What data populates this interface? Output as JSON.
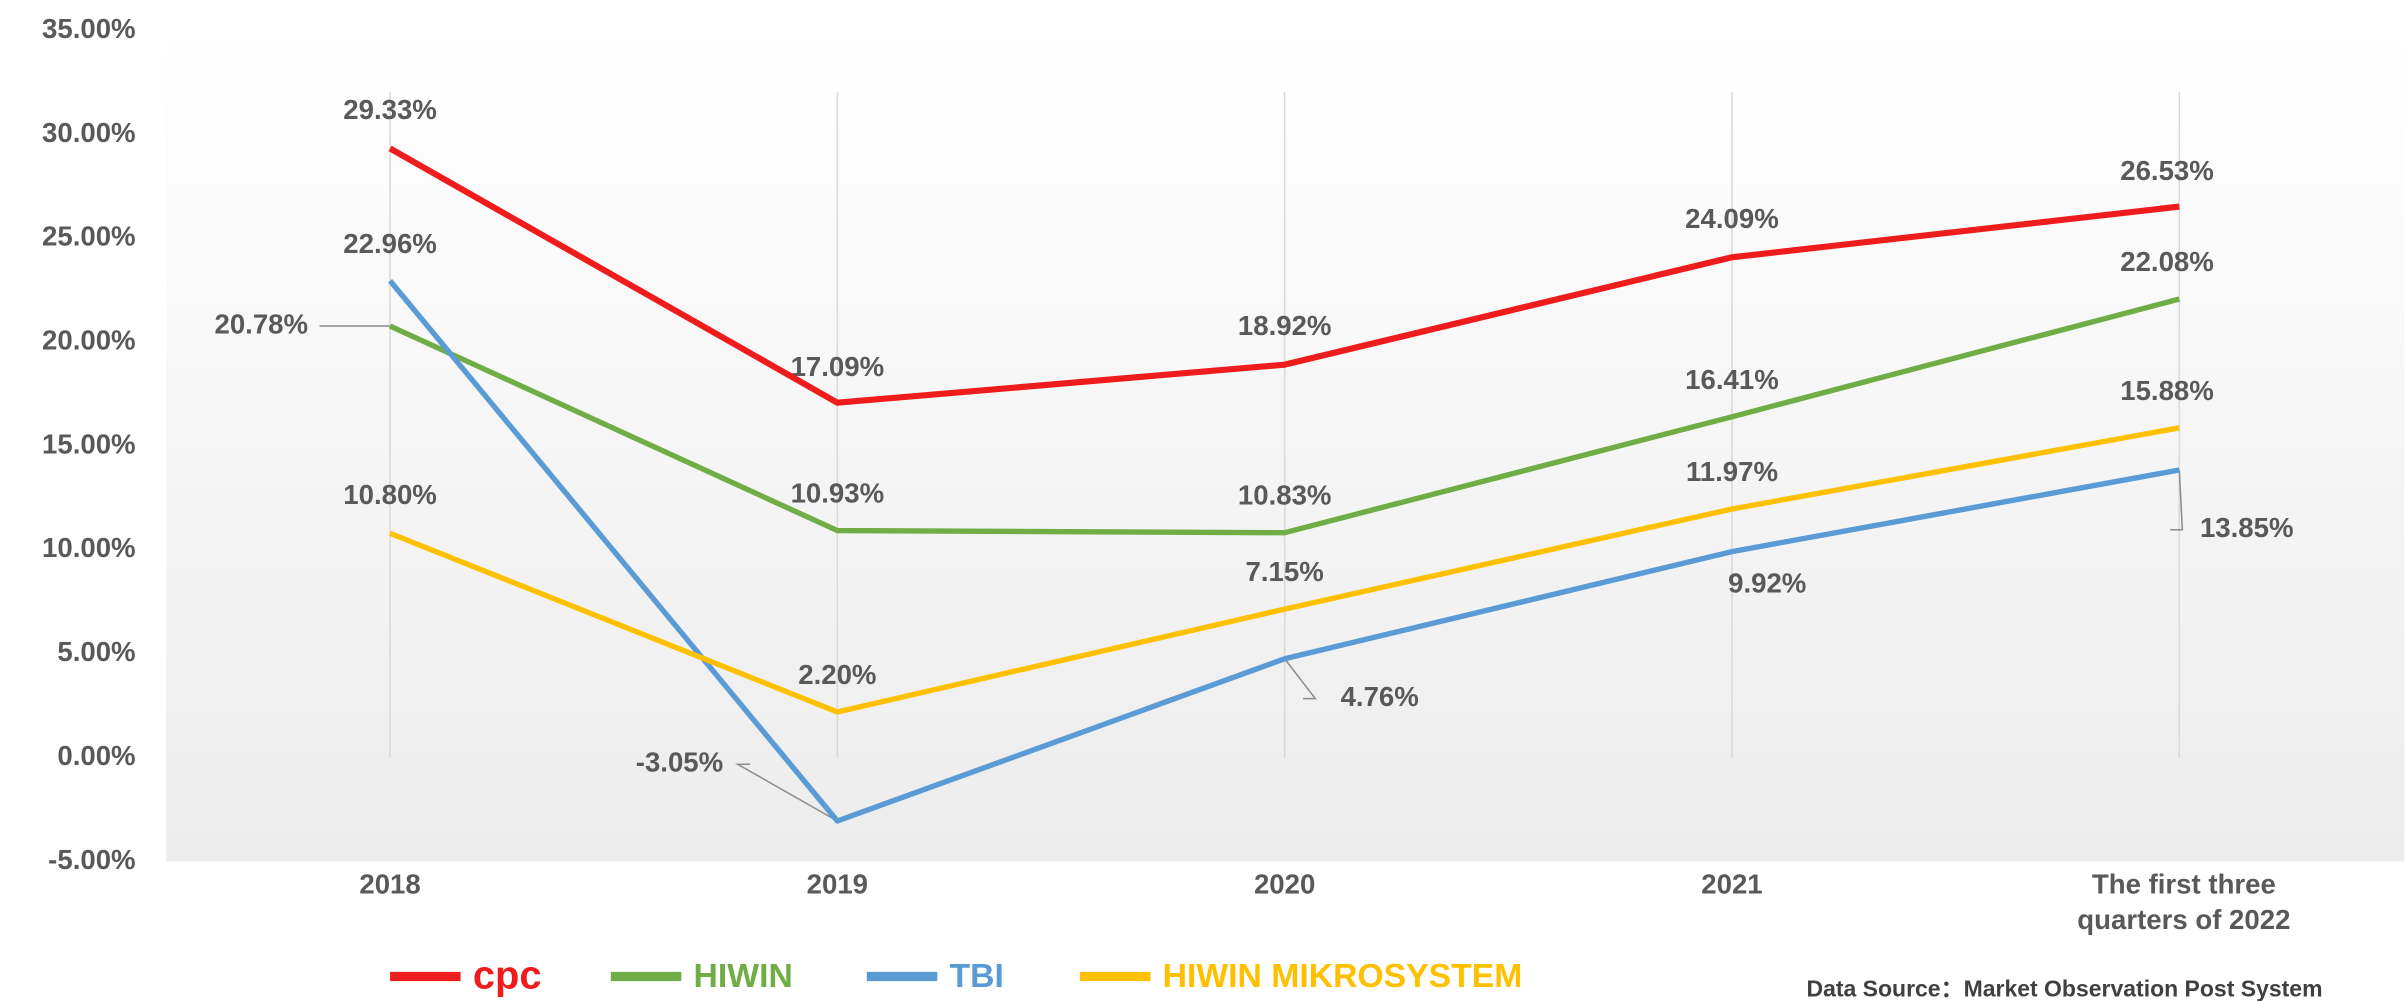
{
  "chart_data": {
    "type": "line",
    "categories": [
      "2018",
      "2019",
      "2020",
      "2021",
      "The first three quarters of 2022"
    ],
    "ylim": [
      -5,
      35
    ],
    "yticks": [
      {
        "value": -5,
        "label": "-5.00%"
      },
      {
        "value": 0,
        "label": "0.00%"
      },
      {
        "value": 5,
        "label": "5.00%"
      },
      {
        "value": 10,
        "label": "10.00%"
      },
      {
        "value": 15,
        "label": "15.00%"
      },
      {
        "value": 20,
        "label": "20.00%"
      },
      {
        "value": 25,
        "label": "25.00%"
      },
      {
        "value": 30,
        "label": "30.00%"
      },
      {
        "value": 35,
        "label": "35.00%"
      }
    ],
    "series": [
      {
        "name": "cpc",
        "color": "#ee1c1c",
        "values": [
          29.33,
          17.09,
          18.92,
          24.09,
          26.53
        ],
        "value_labels": [
          "29.33%",
          "17.09%",
          "18.92%",
          "24.09%",
          "26.53%"
        ]
      },
      {
        "name": "HIWIN",
        "color": "#70ad47",
        "values": [
          20.78,
          10.93,
          10.83,
          16.41,
          22.08
        ],
        "value_labels": [
          "20.78%",
          "10.93%",
          "10.83%",
          "16.41%",
          "22.08%"
        ]
      },
      {
        "name": "TBI",
        "color": "#5b9bd5",
        "values": [
          22.96,
          -3.05,
          4.76,
          9.92,
          13.85
        ],
        "value_labels": [
          "22.96%",
          "-3.05%",
          "4.76%",
          "9.92%",
          "13.85%"
        ]
      },
      {
        "name": "HIWIN MIKROSYSTEM",
        "color": "#ffc000",
        "values": [
          10.8,
          2.2,
          7.15,
          11.97,
          15.88
        ],
        "value_labels": [
          "10.80%",
          "2.20%",
          "7.15%",
          "11.97%",
          "15.88%"
        ]
      }
    ],
    "source": "Data Source：Market Observation Post System"
  }
}
